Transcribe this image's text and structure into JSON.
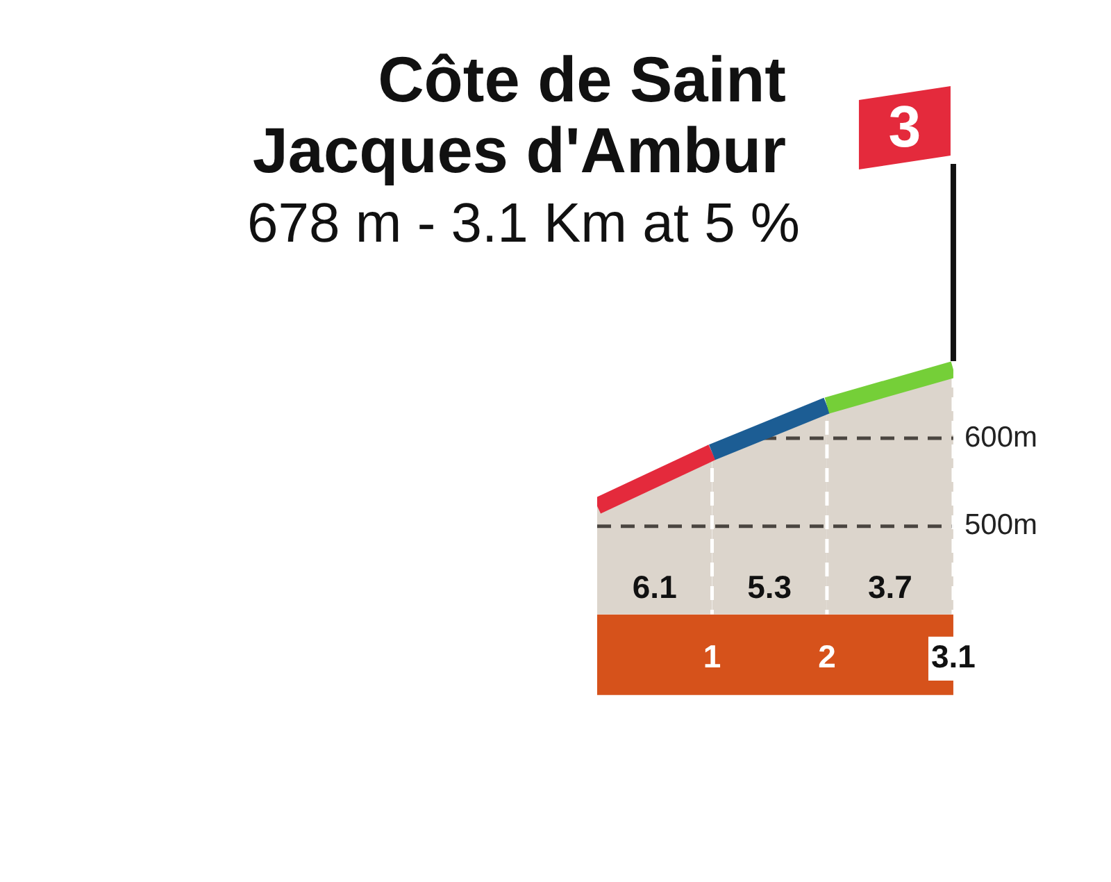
{
  "chart_data": {
    "type": "area",
    "title": "Côte de Saint Jacques d'Ambur",
    "subtitle": "678 m - 3.1 Km at 5 %",
    "x": [
      0,
      1,
      2,
      3.1
    ],
    "series": [
      {
        "type": "area",
        "color": "#dcd5cc",
        "colors": [
          "#e42a3c",
          "#1c5d94",
          "#75cf38",
          "#75cf38"
        ],
        "values": [
          523,
          584,
          637,
          678
        ]
      }
    ],
    "xlim": [
      0,
      3.1
    ],
    "xticks": [
      1,
      2,
      3.1
    ],
    "ylim": [
      400,
      700
    ],
    "yticks": [
      {
        "value": 500,
        "label": "500m"
      },
      {
        "value": 600,
        "label": "600m"
      }
    ],
    "grid": true,
    "annotations": [
      "6.1",
      "5.3",
      "3.7"
    ],
    "ref_lines": [
      {
        "axis": "x",
        "value": 3.1,
        "label": "3"
      }
    ]
  }
}
